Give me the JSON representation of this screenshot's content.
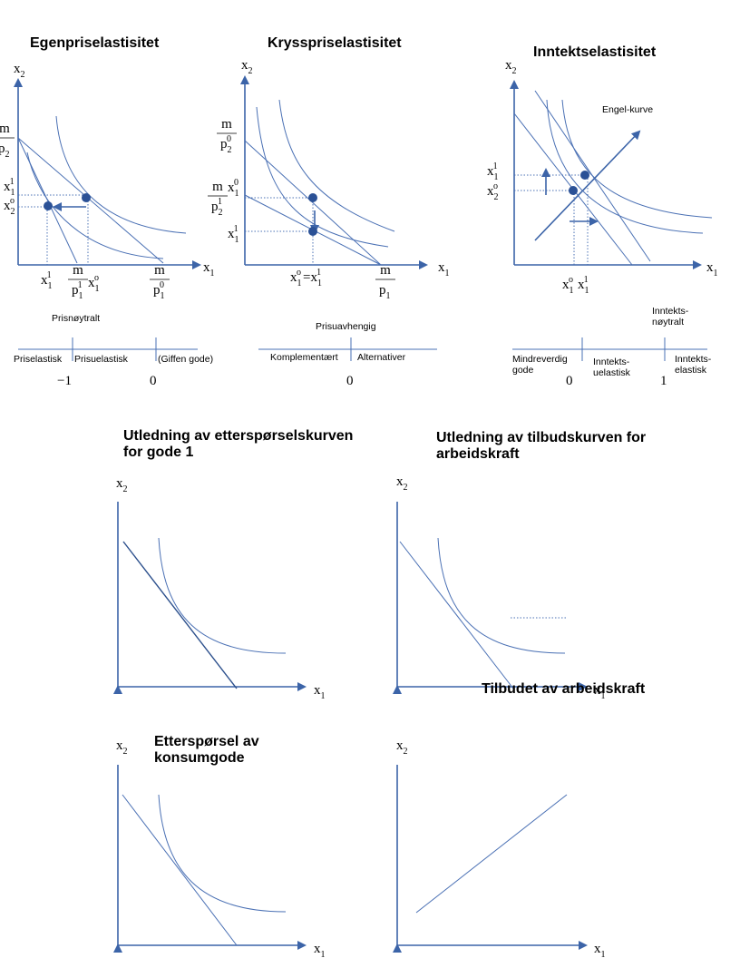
{
  "axis_labels": {
    "x1": {
      "base": "x",
      "sub": "1"
    },
    "x2": {
      "base": "x",
      "sub": "2"
    }
  },
  "panels": [
    {
      "title": "Egenpriselastisitet",
      "labels": [
        {
          "num": "m",
          "den": {
            "base": "p",
            "sub": "2"
          }
        },
        {
          "base": "x",
          "sub": "1",
          "sup": "1"
        },
        {
          "base": "x",
          "sub": "2",
          "sup": "o"
        },
        {
          "base": "x",
          "sub": "1",
          "sup": "1"
        },
        {
          "num": "m",
          "den": {
            "base": "p",
            "sub": "1",
            "sup": "1"
          }
        },
        {
          "base": "x",
          "sub": "1",
          "sup": "o"
        },
        {
          "num": "m",
          "den": {
            "base": "p",
            "sub": "1",
            "sup": "0"
          }
        }
      ],
      "scale": {
        "top": [
          "Prisnøytralt"
        ],
        "segments": [
          [
            "Priselastisk"
          ],
          [
            "Prisuelastisk"
          ],
          [
            "(Giffen gode)"
          ]
        ],
        "values": [
          "−1",
          "0"
        ]
      }
    },
    {
      "title": "Krysspriselastisitet",
      "labels": [
        {
          "num": "m",
          "den": {
            "base": "p",
            "sub": "2",
            "sup": "0"
          }
        },
        {
          "base": "x",
          "sub": "1",
          "sup": "0"
        },
        {
          "num": "m",
          "den": {
            "base": "p",
            "sub": "2",
            "sup": "1"
          }
        },
        {
          "base": "x",
          "sub": "1",
          "sup": "1"
        },
        {
          "left": {
            "base": "x",
            "sub": "1",
            "sup": "o"
          },
          "op": "=",
          "right": {
            "base": "x",
            "sub": "1",
            "sup": "1"
          }
        },
        {
          "num": "m",
          "den": {
            "base": "p",
            "sub": "1"
          }
        }
      ],
      "scale": {
        "top": [
          "Prisuavhengig"
        ],
        "segments": [
          [
            "Komplementært"
          ],
          [
            "Alternativer"
          ]
        ],
        "values": [
          "0"
        ]
      }
    },
    {
      "title": "Inntektselastisitet",
      "annotation": "Engel-kurve",
      "labels": [
        {
          "base": "x",
          "sub": "1",
          "sup": "1"
        },
        {
          "base": "x",
          "sub": "2",
          "sup": "o"
        },
        {
          "base": "x",
          "sub": "1",
          "sup": "o"
        },
        {
          "base": "x",
          "sub": "1",
          "sup": "1"
        }
      ],
      "scale": {
        "top": [
          "Inntekts-",
          "nøytralt"
        ],
        "segments": [
          [
            "Mindreverdig",
            "gode"
          ],
          [
            "Inntekts-",
            "uelastisk"
          ],
          [
            "Inntekts-",
            "elastisk"
          ]
        ],
        "values": [
          "0",
          "1"
        ]
      }
    }
  ],
  "bottom_panels": [
    {
      "title": [
        "Utledning av etterspørselskurven",
        "for gode 1"
      ]
    },
    {
      "title": [
        "Utledning av tilbudskurven for",
        "arbeidskraft"
      ]
    },
    {
      "title": [
        "Etterspørsel av",
        "konsumgode"
      ]
    },
    {
      "title": [
        "Tilbudet av arbeidskraft"
      ]
    }
  ]
}
